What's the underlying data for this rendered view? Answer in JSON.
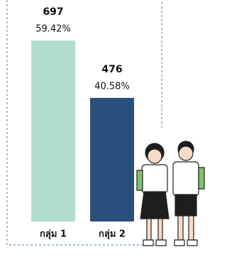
{
  "chart_data": {
    "type": "bar",
    "categories": [
      "กลุ่ม 1",
      "กลุ่ม 2"
    ],
    "values": [
      697,
      476
    ],
    "shares": [
      {
        "value": 59.42,
        "label": "59.42%"
      },
      {
        "value": 40.58,
        "label": "40.58%"
      }
    ],
    "colors": [
      "#b3ddd1",
      "#2b4f7c"
    ]
  }
}
